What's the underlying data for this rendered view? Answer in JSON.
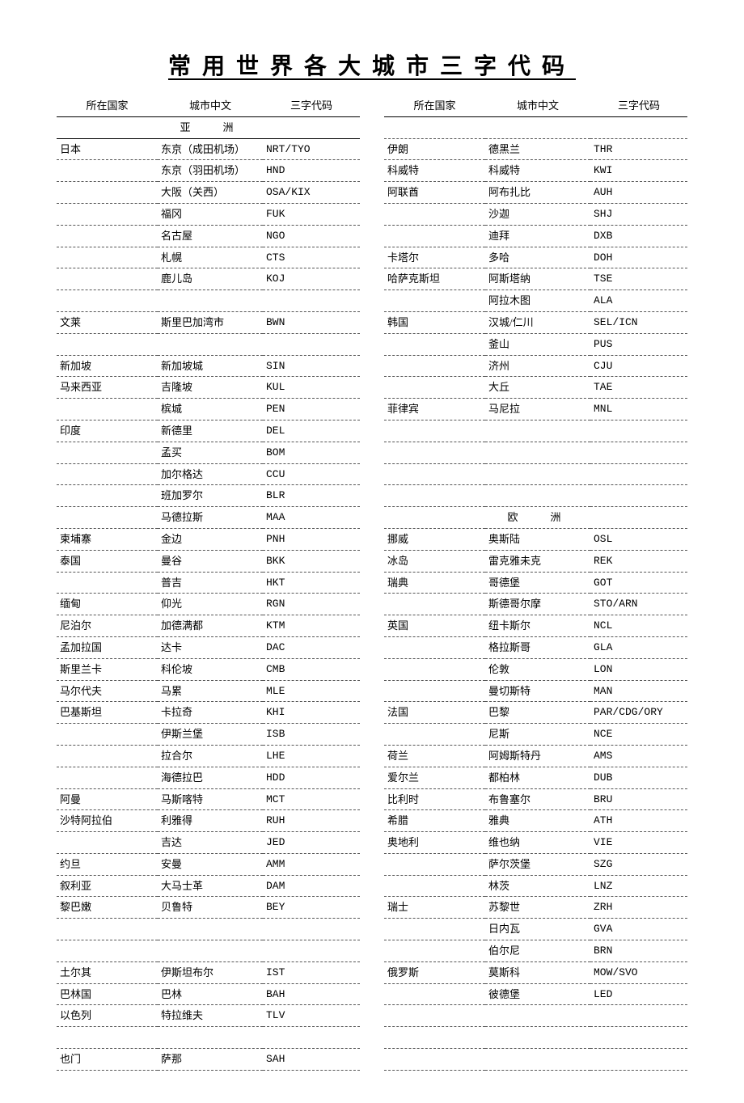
{
  "title": "常用世界各大城市三字代码",
  "headers": {
    "country": "所在国家",
    "city": "城市中文",
    "code": "三字代码"
  },
  "regions": {
    "asia": "亚洲",
    "europe": "欧洲"
  },
  "left_rows": [
    {
      "type": "region",
      "text": "亚洲"
    },
    {
      "country": "日本",
      "city": "东京（成田机场）",
      "code": "NRT/TYO"
    },
    {
      "country": "",
      "city": "东京（羽田机场）",
      "code": "HND"
    },
    {
      "country": "",
      "city": "大阪（关西）",
      "code": "OSA/KIX"
    },
    {
      "country": "",
      "city": "福冈",
      "code": "FUK"
    },
    {
      "country": "",
      "city": "名古屋",
      "code": "NGO"
    },
    {
      "country": "",
      "city": "札幌",
      "code": "CTS"
    },
    {
      "country": "",
      "city": "鹿儿岛",
      "code": "KOJ"
    },
    {
      "country": "",
      "city": "",
      "code": ""
    },
    {
      "country": "文莱",
      "city": "斯里巴加湾市",
      "code": "BWN"
    },
    {
      "country": "",
      "city": "",
      "code": ""
    },
    {
      "country": "新加坡",
      "city": "新加坡城",
      "code": "SIN"
    },
    {
      "country": "马来西亚",
      "city": "吉隆坡",
      "code": "KUL"
    },
    {
      "country": "",
      "city": "槟城",
      "code": "PEN"
    },
    {
      "country": "印度",
      "city": "新德里",
      "code": "DEL"
    },
    {
      "country": "",
      "city": "孟买",
      "code": "BOM"
    },
    {
      "country": "",
      "city": "加尔格达",
      "code": "CCU"
    },
    {
      "country": "",
      "city": "班加罗尔",
      "code": "BLR"
    },
    {
      "country": "",
      "city": "马德拉斯",
      "code": "MAA"
    },
    {
      "country": "柬埔寨",
      "city": "金边",
      "code": "PNH"
    },
    {
      "country": "泰国",
      "city": "曼谷",
      "code": "BKK"
    },
    {
      "country": "",
      "city": "普吉",
      "code": "HKT"
    },
    {
      "country": "缅甸",
      "city": "仰光",
      "code": "RGN"
    },
    {
      "country": "尼泊尔",
      "city": "加德满都",
      "code": "KTM"
    },
    {
      "country": "孟加拉国",
      "city": "达卡",
      "code": "DAC"
    },
    {
      "country": "斯里兰卡",
      "city": "科伦坡",
      "code": "CMB"
    },
    {
      "country": "马尔代夫",
      "city": "马累",
      "code": "MLE"
    },
    {
      "country": "巴基斯坦",
      "city": "卡拉奇",
      "code": "KHI"
    },
    {
      "country": "",
      "city": "伊斯兰堡",
      "code": "ISB"
    },
    {
      "country": "",
      "city": "拉合尔",
      "code": "LHE"
    },
    {
      "country": "",
      "city": "海德拉巴",
      "code": "HDD"
    },
    {
      "country": "阿曼",
      "city": "马斯喀特",
      "code": "MCT"
    },
    {
      "country": "沙特阿拉伯",
      "city": "利雅得",
      "code": "RUH"
    },
    {
      "country": "",
      "city": "吉达",
      "code": "JED"
    },
    {
      "country": "约旦",
      "city": "安曼",
      "code": "AMM"
    },
    {
      "country": "叙利亚",
      "city": "大马士革",
      "code": "DAM"
    },
    {
      "country": "黎巴嫩",
      "city": "贝鲁特",
      "code": "BEY"
    },
    {
      "country": "",
      "city": "",
      "code": ""
    },
    {
      "country": "",
      "city": "",
      "code": ""
    },
    {
      "country": "土尔其",
      "city": "伊斯坦布尔",
      "code": "IST"
    },
    {
      "country": "巴林国",
      "city": "巴林",
      "code": "BAH"
    },
    {
      "country": "以色列",
      "city": "特拉维夫",
      "code": "TLV"
    },
    {
      "country": "",
      "city": "",
      "code": ""
    },
    {
      "country": "也门",
      "city": "萨那",
      "code": "SAH"
    }
  ],
  "right_rows": [
    {
      "country": "",
      "city": "",
      "code": ""
    },
    {
      "country": "伊朗",
      "city": "德黑兰",
      "code": "THR"
    },
    {
      "country": "科威特",
      "city": "科威特",
      "code": "KWI"
    },
    {
      "country": "阿联酋",
      "city": "阿布扎比",
      "code": "AUH"
    },
    {
      "country": "",
      "city": "沙迦",
      "code": "SHJ"
    },
    {
      "country": "",
      "city": "迪拜",
      "code": "DXB"
    },
    {
      "country": "卡塔尔",
      "city": "多哈",
      "code": "DOH"
    },
    {
      "country": "哈萨克斯坦",
      "city": "阿斯塔纳",
      "code": "TSE"
    },
    {
      "country": "",
      "city": "阿拉木图",
      "code": "ALA"
    },
    {
      "country": "韩国",
      "city": "汉城/仁川",
      "code": "SEL/ICN"
    },
    {
      "country": "",
      "city": "釜山",
      "code": "PUS"
    },
    {
      "country": "",
      "city": "济州",
      "code": "CJU"
    },
    {
      "country": "",
      "city": "大丘",
      "code": "TAE"
    },
    {
      "country": "菲律宾",
      "city": "马尼拉",
      "code": "MNL"
    },
    {
      "country": "",
      "city": "",
      "code": ""
    },
    {
      "country": "",
      "city": "",
      "code": ""
    },
    {
      "country": "",
      "city": "",
      "code": ""
    },
    {
      "country": "",
      "city": "",
      "code": ""
    },
    {
      "type": "region",
      "text": "欧洲"
    },
    {
      "country": "挪威",
      "city": "奥斯陆",
      "code": "OSL"
    },
    {
      "country": "冰岛",
      "city": "雷克雅未克",
      "code": "REK"
    },
    {
      "country": "瑞典",
      "city": "哥德堡",
      "code": "GOT"
    },
    {
      "country": "",
      "city": "斯德哥尔摩",
      "code": "STO/ARN"
    },
    {
      "country": "英国",
      "city": "纽卡斯尔",
      "code": "NCL"
    },
    {
      "country": "",
      "city": "格拉斯哥",
      "code": "GLA"
    },
    {
      "country": "",
      "city": "伦敦",
      "code": "LON"
    },
    {
      "country": "",
      "city": "曼切斯特",
      "code": "MAN"
    },
    {
      "country": "法国",
      "city": "巴黎",
      "code": "PAR/CDG/ORY"
    },
    {
      "country": "",
      "city": "尼斯",
      "code": "NCE"
    },
    {
      "country": "荷兰",
      "city": "阿姆斯特丹",
      "code": "AMS"
    },
    {
      "country": "爱尔兰",
      "city": "都柏林",
      "code": "DUB"
    },
    {
      "country": "比利时",
      "city": "布鲁塞尔",
      "code": "BRU"
    },
    {
      "country": "希腊",
      "city": "雅典",
      "code": "ATH"
    },
    {
      "country": "奥地利",
      "city": "维也纳",
      "code": "VIE"
    },
    {
      "country": "",
      "city": "萨尔茨堡",
      "code": "SZG"
    },
    {
      "country": "",
      "city": "林茨",
      "code": "LNZ"
    },
    {
      "country": "瑞士",
      "city": "苏黎世",
      "code": "ZRH"
    },
    {
      "country": "",
      "city": "日内瓦",
      "code": "GVA"
    },
    {
      "country": "",
      "city": "伯尔尼",
      "code": "BRN"
    },
    {
      "country": "俄罗斯",
      "city": "莫斯科",
      "code": "MOW/SVO"
    },
    {
      "country": "",
      "city": "彼德堡",
      "code": "LED"
    },
    {
      "country": "",
      "city": "",
      "code": ""
    },
    {
      "country": "",
      "city": "",
      "code": ""
    },
    {
      "country": "",
      "city": "",
      "code": ""
    }
  ]
}
